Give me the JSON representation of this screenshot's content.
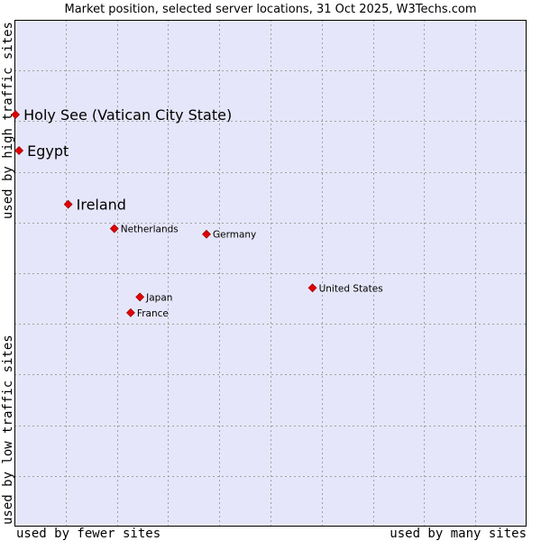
{
  "chart_data": {
    "type": "scatter",
    "title": "Market position, selected server locations, 31 Oct 2025, W3Techs.com",
    "xlabel_low": "used by fewer sites",
    "xlabel_high": "used by many sites",
    "ylabel_low": "used by low traffic sites",
    "ylabel_high": "used by high traffic sites",
    "xlim": [
      0,
      100
    ],
    "ylim": [
      0,
      100
    ],
    "grid": true,
    "colors": {
      "plot_bg": "#e6e6fa",
      "grid": "#a0a0a0",
      "point": "#e00000",
      "point_stroke": "#8b0000"
    },
    "points": [
      {
        "name": "Holy See (Vatican City State)",
        "x": 0.2,
        "y": 81.3,
        "emphasis": true
      },
      {
        "name": "Egypt",
        "x": 0.9,
        "y": 74.2,
        "emphasis": true
      },
      {
        "name": "Ireland",
        "x": 10.5,
        "y": 63.6,
        "emphasis": true
      },
      {
        "name": "Netherlands",
        "x": 19.5,
        "y": 58.8,
        "emphasis": false
      },
      {
        "name": "Germany",
        "x": 37.5,
        "y": 57.7,
        "emphasis": false
      },
      {
        "name": "United States",
        "x": 58.2,
        "y": 47.1,
        "emphasis": false
      },
      {
        "name": "Japan",
        "x": 24.5,
        "y": 45.3,
        "emphasis": false
      },
      {
        "name": "France",
        "x": 22.7,
        "y": 42.2,
        "emphasis": false
      }
    ]
  }
}
